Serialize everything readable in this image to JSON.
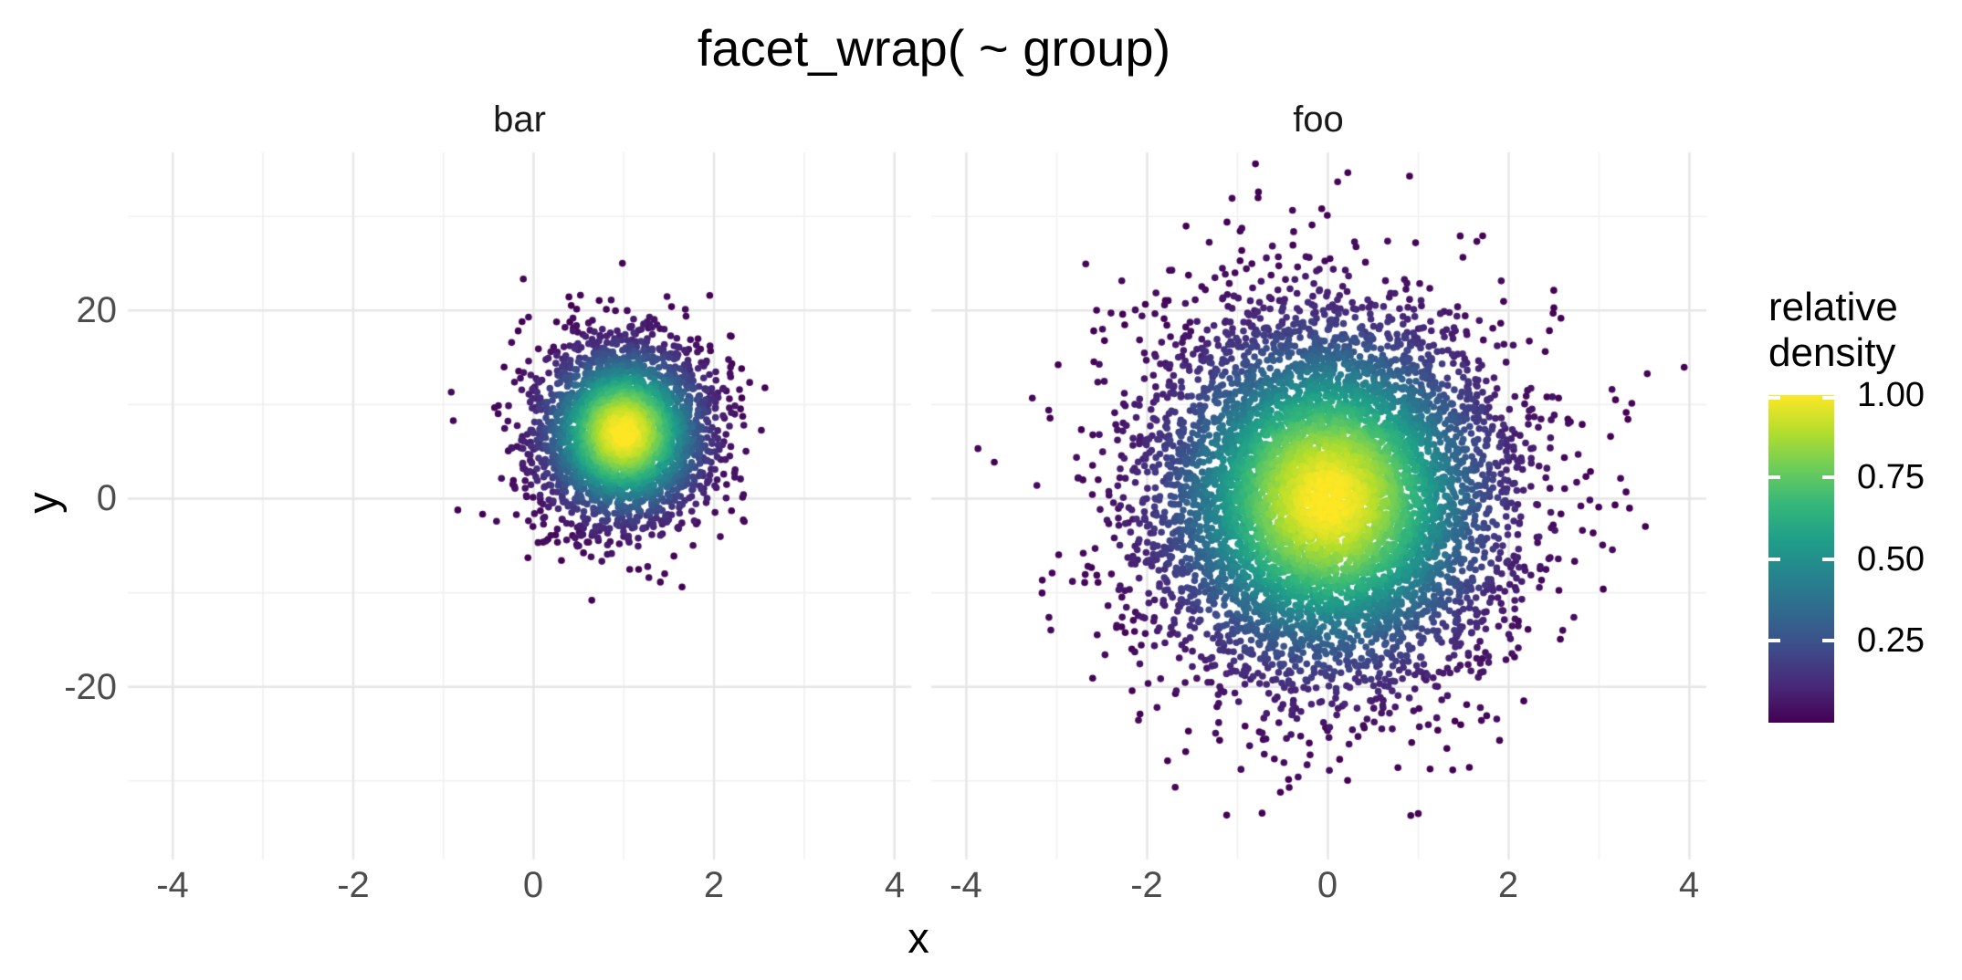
{
  "title": "facet_wrap( ~ group)",
  "facets": [
    "bar",
    "foo"
  ],
  "axes": {
    "x": {
      "title": "x",
      "tick_labels": [
        "-4",
        "-2",
        "0",
        "2",
        "4"
      ]
    },
    "y": {
      "title": "y",
      "tick_labels": [
        "20",
        "0",
        "-20"
      ]
    }
  },
  "legend": {
    "title_lines": [
      "relative",
      "density"
    ],
    "tick_labels": [
      "1.00",
      "0.75",
      "0.50",
      "0.25"
    ],
    "tick_values": [
      1.0,
      0.75,
      0.5,
      0.25
    ]
  },
  "colors": {
    "viridis_stops": [
      "#440154",
      "#482878",
      "#3E4A89",
      "#31688E",
      "#26828E",
      "#1F9E89",
      "#35B779",
      "#6DCD59",
      "#B4DE2C",
      "#FDE725"
    ],
    "grid_major": "#E6E6E6",
    "grid_minor": "#F0F0F0",
    "tick_text": "#4D4D4D",
    "strip_text": "#1A1A1A",
    "text": "#000000",
    "background": "#FFFFFF"
  },
  "chart_data": {
    "type": "scatter",
    "title": "facet_wrap( ~ group)",
    "xlabel": "x",
    "ylabel": "y",
    "grid": true,
    "legend_position": "right",
    "x_ticks": [
      -4,
      -2,
      0,
      2,
      4
    ],
    "x_minor_ticks": [
      -3,
      -1,
      1,
      3
    ],
    "y_ticks": [
      20,
      0,
      -20
    ],
    "y_minor_ticks": [
      30,
      10,
      -10,
      -30
    ],
    "xlim": [
      -4.5,
      4.2
    ],
    "ylim": [
      -38.5,
      36.8
    ],
    "color_encoding": {
      "name": "relative density",
      "palette": "viridis",
      "domain": [
        0,
        1
      ],
      "legend_ticks": [
        1.0,
        0.75,
        0.5,
        0.25
      ]
    },
    "facets": [
      {
        "label": "bar",
        "n_points": 3000,
        "mean": [
          1,
          7
        ],
        "sd": [
          0.5,
          5
        ],
        "x_extent_observed": [
          -0.9,
          2.9
        ],
        "y_extent_observed": [
          -12.5,
          24.5
        ]
      },
      {
        "label": "foo",
        "n_points": 7000,
        "mean": [
          0,
          0
        ],
        "sd": [
          1,
          10
        ],
        "x_extent_observed": [
          -4.1,
          4.0
        ],
        "y_extent_observed": [
          -38,
          36.5
        ]
      }
    ],
    "point_radius_px": 3.8,
    "density_model": "relative_density = exp(-0.5*(((x-mx)/sx)^2 + ((y-my)/sy)^2)), normalized 0-1 per facet"
  }
}
